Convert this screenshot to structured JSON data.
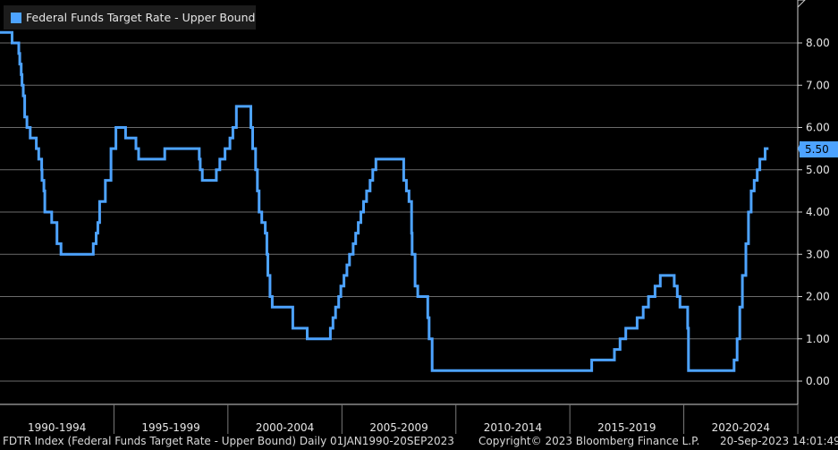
{
  "legend": {
    "label": "Federal Funds Target Rate - Upper Bound",
    "color": "#4da3ff"
  },
  "footer": {
    "left": "FDTR Index (Federal Funds Target Rate - Upper Bound)  Daily 01JAN1990-20SEP2023",
    "center": "Copyright© 2023 Bloomberg Finance L.P.",
    "right": "20-Sep-2023 14:01:49"
  },
  "current_value_label": "5.50",
  "colors": {
    "background": "#000000",
    "line": "#4da3ff",
    "grid": "#6b6b6b",
    "text": "#e6e6e6"
  },
  "chart_data": {
    "type": "line",
    "title": "",
    "xlabel": "",
    "ylabel": "",
    "ylim": [
      -0.5,
      9.0
    ],
    "y_ticks": [
      "0.00",
      "1.00",
      "2.00",
      "3.00",
      "4.00",
      "5.00",
      "6.00",
      "7.00",
      "8.00"
    ],
    "x_categories": [
      "1990-1994",
      "1995-1999",
      "2000-2004",
      "2005-2009",
      "2010-2014",
      "2015-2019",
      "2020-2024"
    ],
    "xlim": [
      "1990-01-01",
      "2024-12-31"
    ],
    "legend_position": "top-left",
    "grid": true,
    "y_axis_position": "right",
    "series": [
      {
        "name": "Federal Funds Target Rate - Upper Bound",
        "step": true,
        "points": [
          [
            "1990-01-01",
            8.25
          ],
          [
            "1990-07-13",
            8.0
          ],
          [
            "1990-10-29",
            7.75
          ],
          [
            "1990-11-14",
            7.5
          ],
          [
            "1990-12-07",
            7.25
          ],
          [
            "1990-12-19",
            7.0
          ],
          [
            "1991-01-09",
            6.75
          ],
          [
            "1991-02-01",
            6.25
          ],
          [
            "1991-03-08",
            6.0
          ],
          [
            "1991-04-30",
            5.75
          ],
          [
            "1991-08-06",
            5.5
          ],
          [
            "1991-09-13",
            5.25
          ],
          [
            "1991-10-31",
            5.0
          ],
          [
            "1991-11-06",
            4.75
          ],
          [
            "1991-12-06",
            4.5
          ],
          [
            "1991-12-20",
            4.0
          ],
          [
            "1992-04-09",
            3.75
          ],
          [
            "1992-07-02",
            3.25
          ],
          [
            "1992-09-04",
            3.0
          ],
          [
            "1994-02-04",
            3.25
          ],
          [
            "1994-03-22",
            3.5
          ],
          [
            "1994-04-18",
            3.75
          ],
          [
            "1994-05-17",
            4.25
          ],
          [
            "1994-08-16",
            4.75
          ],
          [
            "1994-11-15",
            5.5
          ],
          [
            "1995-02-01",
            6.0
          ],
          [
            "1995-07-06",
            5.75
          ],
          [
            "1995-12-19",
            5.5
          ],
          [
            "1996-01-31",
            5.25
          ],
          [
            "1997-03-25",
            5.5
          ],
          [
            "1998-09-29",
            5.25
          ],
          [
            "1998-10-15",
            5.0
          ],
          [
            "1998-11-17",
            4.75
          ],
          [
            "1999-06-30",
            5.0
          ],
          [
            "1999-08-24",
            5.25
          ],
          [
            "1999-11-16",
            5.5
          ],
          [
            "2000-02-02",
            5.75
          ],
          [
            "2000-03-21",
            6.0
          ],
          [
            "2000-05-16",
            6.5
          ],
          [
            "2001-01-03",
            6.0
          ],
          [
            "2001-01-31",
            5.5
          ],
          [
            "2001-03-20",
            5.0
          ],
          [
            "2001-04-18",
            4.5
          ],
          [
            "2001-05-15",
            4.0
          ],
          [
            "2001-06-27",
            3.75
          ],
          [
            "2001-08-21",
            3.5
          ],
          [
            "2001-09-17",
            3.0
          ],
          [
            "2001-10-02",
            2.5
          ],
          [
            "2001-11-06",
            2.0
          ],
          [
            "2001-12-11",
            1.75
          ],
          [
            "2002-11-06",
            1.25
          ],
          [
            "2003-06-25",
            1.0
          ],
          [
            "2004-06-30",
            1.25
          ],
          [
            "2004-08-10",
            1.5
          ],
          [
            "2004-09-21",
            1.75
          ],
          [
            "2004-11-10",
            2.0
          ],
          [
            "2004-12-14",
            2.25
          ],
          [
            "2005-02-02",
            2.5
          ],
          [
            "2005-03-22",
            2.75
          ],
          [
            "2005-05-03",
            3.0
          ],
          [
            "2005-06-30",
            3.25
          ],
          [
            "2005-08-09",
            3.5
          ],
          [
            "2005-09-20",
            3.75
          ],
          [
            "2005-11-01",
            4.0
          ],
          [
            "2005-12-13",
            4.25
          ],
          [
            "2006-01-31",
            4.5
          ],
          [
            "2006-03-28",
            4.75
          ],
          [
            "2006-05-10",
            5.0
          ],
          [
            "2006-06-29",
            5.25
          ],
          [
            "2007-09-18",
            4.75
          ],
          [
            "2007-10-31",
            4.5
          ],
          [
            "2007-12-11",
            4.25
          ],
          [
            "2008-01-22",
            3.5
          ],
          [
            "2008-01-30",
            3.0
          ],
          [
            "2008-03-18",
            2.25
          ],
          [
            "2008-04-30",
            2.0
          ],
          [
            "2008-10-08",
            1.5
          ],
          [
            "2008-10-29",
            1.0
          ],
          [
            "2008-12-16",
            0.25
          ],
          [
            "2015-12-17",
            0.5
          ],
          [
            "2016-12-15",
            0.75
          ],
          [
            "2017-03-16",
            1.0
          ],
          [
            "2017-06-15",
            1.25
          ],
          [
            "2017-12-14",
            1.5
          ],
          [
            "2018-03-22",
            1.75
          ],
          [
            "2018-06-14",
            2.0
          ],
          [
            "2018-09-27",
            2.25
          ],
          [
            "2018-12-20",
            2.5
          ],
          [
            "2019-08-01",
            2.25
          ],
          [
            "2019-09-19",
            2.0
          ],
          [
            "2019-10-31",
            1.75
          ],
          [
            "2020-03-03",
            1.25
          ],
          [
            "2020-03-16",
            0.25
          ],
          [
            "2022-03-17",
            0.5
          ],
          [
            "2022-05-05",
            1.0
          ],
          [
            "2022-06-16",
            1.75
          ],
          [
            "2022-07-28",
            2.5
          ],
          [
            "2022-09-22",
            3.25
          ],
          [
            "2022-11-03",
            4.0
          ],
          [
            "2022-12-15",
            4.5
          ],
          [
            "2023-02-02",
            4.75
          ],
          [
            "2023-03-23",
            5.0
          ],
          [
            "2023-05-04",
            5.25
          ],
          [
            "2023-07-27",
            5.5
          ],
          [
            "2023-09-20",
            5.5
          ]
        ]
      }
    ]
  }
}
